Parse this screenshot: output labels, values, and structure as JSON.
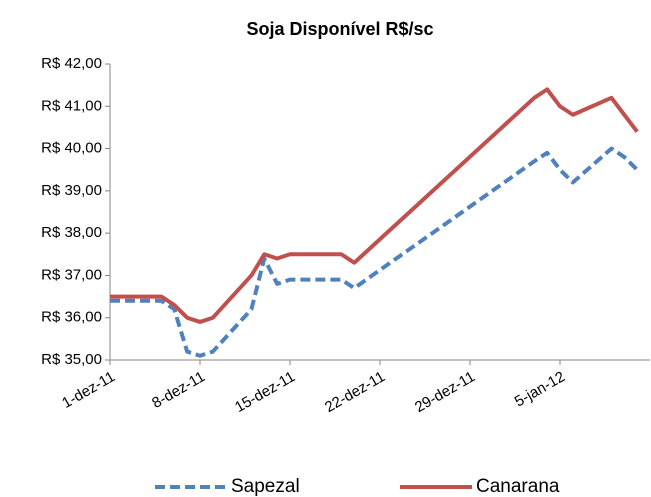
{
  "chart_data": {
    "type": "line",
    "title": "Soja Disponível R$/sc",
    "x": [
      "2011-12-01",
      "2011-12-02",
      "2011-12-05",
      "2011-12-06",
      "2011-12-07",
      "2011-12-08",
      "2011-12-09",
      "2011-12-12",
      "2011-12-13",
      "2011-12-14",
      "2011-12-15",
      "2011-12-16",
      "2011-12-19",
      "2011-12-20",
      "2012-01-03",
      "2012-01-04",
      "2012-01-05",
      "2012-01-06",
      "2012-01-09",
      "2012-01-10",
      "2012-01-11"
    ],
    "series": [
      {
        "name": "Sapezal",
        "color": "#4f81bd",
        "dash": true,
        "values": [
          36.4,
          36.4,
          36.4,
          36.2,
          35.2,
          35.1,
          35.2,
          36.2,
          37.4,
          36.8,
          36.9,
          36.9,
          36.9,
          36.7,
          39.7,
          39.9,
          39.5,
          39.2,
          40.0,
          39.8,
          39.5
        ]
      },
      {
        "name": "Canarana",
        "color": "#c0504d",
        "dash": false,
        "values": [
          36.5,
          36.5,
          36.5,
          36.3,
          36.0,
          35.9,
          36.0,
          37.0,
          37.5,
          37.4,
          37.5,
          37.5,
          37.5,
          37.3,
          41.2,
          41.4,
          41.0,
          40.8,
          41.2,
          40.8,
          40.4
        ]
      }
    ],
    "xlim": [
      "2011-12-01",
      "2012-01-12"
    ],
    "xticks": [
      {
        "value": "2011-12-01",
        "label": "1-dez-11"
      },
      {
        "value": "2011-12-08",
        "label": "8-dez-11"
      },
      {
        "value": "2011-12-15",
        "label": "15-dez-11"
      },
      {
        "value": "2011-12-22",
        "label": "22-dez-11"
      },
      {
        "value": "2011-12-29",
        "label": "29-dez-11"
      },
      {
        "value": "2012-01-05",
        "label": "5-jan-12"
      }
    ],
    "ylim": [
      35,
      42
    ],
    "yticks": [
      {
        "value": 35,
        "label": "R$ 35,00"
      },
      {
        "value": 36,
        "label": "R$ 36,00"
      },
      {
        "value": 37,
        "label": "R$ 37,00"
      },
      {
        "value": 38,
        "label": "R$ 38,00"
      },
      {
        "value": 39,
        "label": "R$ 39,00"
      },
      {
        "value": 40,
        "label": "R$ 40,00"
      },
      {
        "value": 41,
        "label": "R$ 41,00"
      },
      {
        "value": 42,
        "label": "R$ 42,00"
      }
    ],
    "grid": false,
    "legend": "bottom"
  }
}
